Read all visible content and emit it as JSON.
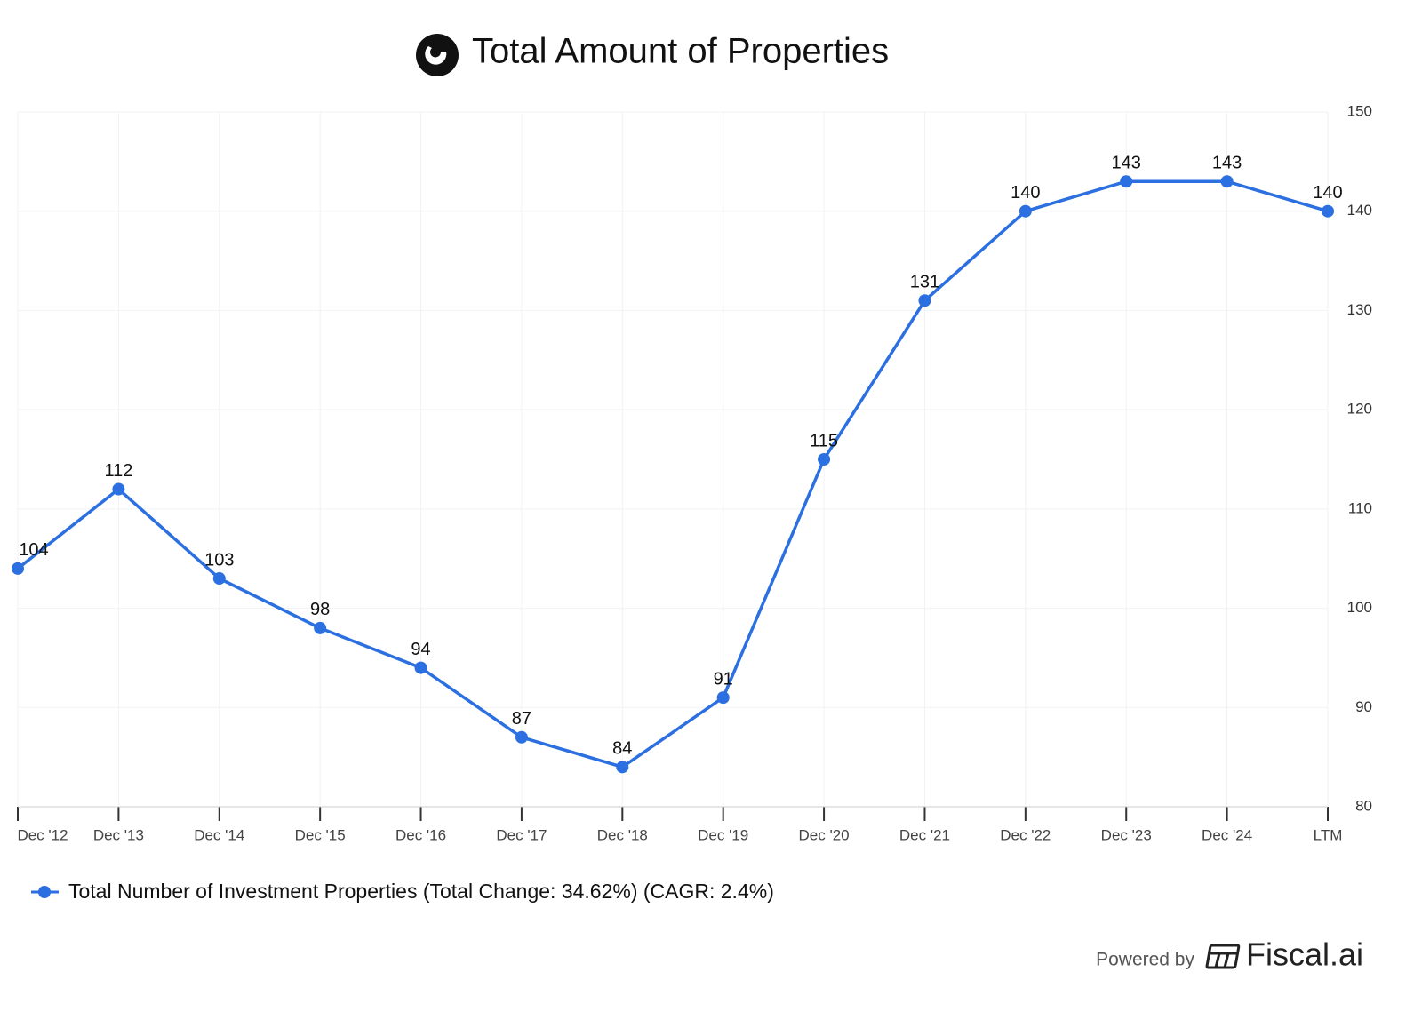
{
  "chart_data": {
    "type": "line",
    "title": "Total Amount of Properties",
    "categories": [
      "Dec '12",
      "Dec '13",
      "Dec '14",
      "Dec '15",
      "Dec '16",
      "Dec '17",
      "Dec '18",
      "Dec '19",
      "Dec '20",
      "Dec '21",
      "Dec '22",
      "Dec '23",
      "Dec '24",
      "LTM"
    ],
    "series": [
      {
        "name": "Total Number of Investment Properties (Total Change: 34.62%) (CAGR: 2.4%)",
        "color": "#2b6fe0",
        "values": [
          104,
          112,
          103,
          98,
          94,
          87,
          84,
          91,
          115,
          131,
          140,
          143,
          143,
          140
        ]
      }
    ],
    "ylim": [
      80,
      150
    ],
    "yticks": [
      80,
      90,
      100,
      110,
      120,
      130,
      140,
      150
    ],
    "grid": true,
    "footer": {
      "prefix": "Powered by",
      "brand": "Fiscal.ai"
    }
  }
}
